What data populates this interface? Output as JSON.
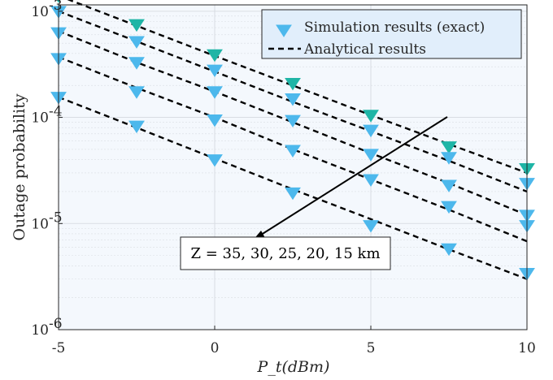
{
  "chart_data": {
    "type": "scatter",
    "xlabel": "P_t(dBm)",
    "ylabel": "Outage probability",
    "xlim": [
      -5,
      10
    ],
    "ylim_log10": [
      -6,
      -2.94
    ],
    "yscale": "log",
    "grid": true,
    "x_ticks": [
      -5,
      0,
      5,
      10
    ],
    "x_tick_labels": [
      "-5",
      "0",
      "5",
      "10"
    ],
    "y_ticks_log10": [
      -6,
      -5,
      -4,
      -3
    ],
    "y_tick_labels": [
      "10",
      "10",
      "10",
      "10"
    ],
    "y_tick_exponents": [
      "-6",
      "-5",
      "-4",
      "-3"
    ],
    "legend_position": "top-right",
    "legend": [
      "Simulation results (exact)",
      "Analytical results"
    ],
    "annotation": "Z = 35, 30, 25, 20, 15 km",
    "x": [
      -5,
      -2.5,
      0,
      2.5,
      5,
      7.5,
      10
    ],
    "series": [
      {
        "name": "Z = 35 km",
        "simulation": [
          0.0014,
          0.00075,
          0.00039,
          0.00021,
          0.000105,
          5.3e-05,
          3.3e-05
        ],
        "analytical": [
          0.0014,
          0.00073,
          0.00038,
          0.0002,
          0.000105,
          5.6e-05,
          3e-05
        ]
      },
      {
        "name": "Z = 30 km",
        "simulation": [
          0.001,
          0.00052,
          0.00028,
          0.00015,
          7.6e-05,
          4.2e-05,
          2.4e-05
        ],
        "analytical": [
          0.001,
          0.00052,
          0.00027,
          0.00014,
          7.4e-05,
          3.9e-05,
          2e-05
        ]
      },
      {
        "name": "Z = 25 km",
        "simulation": [
          0.00063,
          0.00033,
          0.000175,
          9.4e-05,
          4.5e-05,
          2.3e-05,
          1.2e-05
        ],
        "analytical": [
          0.00065,
          0.00033,
          0.000175,
          9e-05,
          4.6e-05,
          2.4e-05,
          1.2e-05
        ]
      },
      {
        "name": "Z = 20 km",
        "simulation": [
          0.00036,
          0.000175,
          9.5e-05,
          4.9e-05,
          2.6e-05,
          1.45e-05,
          9.6e-06
        ],
        "analytical": [
          0.00037,
          0.00019,
          0.0001,
          5e-05,
          2.6e-05,
          1.35e-05,
          6.8e-06
        ]
      },
      {
        "name": "Z = 15 km",
        "simulation": [
          0.000155,
          8.3e-05,
          4e-05,
          1.95e-05,
          9.6e-06,
          5.8e-06,
          3.4e-06
        ],
        "analytical": [
          0.000155,
          8e-05,
          4.1e-05,
          2.1e-05,
          1.1e-05,
          5.7e-06,
          3e-06
        ]
      }
    ]
  },
  "colors": {
    "marker_light": "#4db8ec",
    "marker_teal": "#1fb5a6",
    "plot_bg": "#f4f8fd",
    "legend_bg": "#e1eefb",
    "grid": "#d9dde3"
  }
}
